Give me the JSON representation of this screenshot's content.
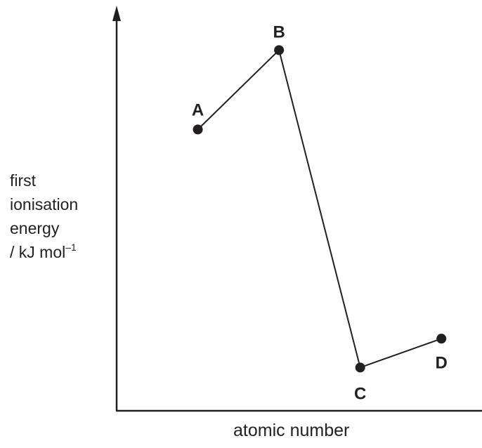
{
  "chart_data": {
    "type": "line",
    "title": "",
    "xlabel": "atomic number",
    "ylabel": [
      "first",
      "ionisation",
      "energy",
      "/ kJ mol",
      "–1"
    ],
    "x": [
      1,
      2,
      3,
      4
    ],
    "series": [
      {
        "labels": [
          "A",
          "B",
          "C",
          "D"
        ],
        "values": [
          0.78,
          1.0,
          0.12,
          0.2
        ]
      }
    ],
    "xlim": [
      0,
      4.5
    ],
    "ylim": [
      0,
      1.1
    ],
    "grid": false,
    "axes_arrows": true,
    "line_color": "#231f20",
    "marker": "filled-circle"
  }
}
